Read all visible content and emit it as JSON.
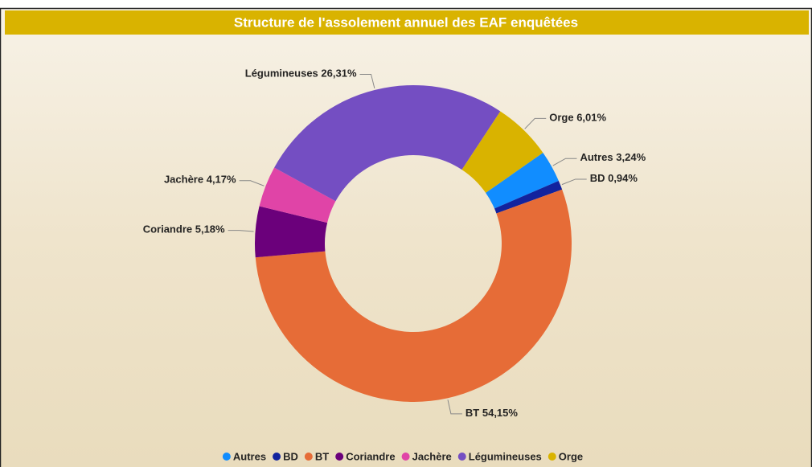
{
  "chart_data": {
    "type": "donut",
    "title": "Structure de l'assolement annuel des EAF enquêtées",
    "categories": [
      "Autres",
      "BD",
      "BT",
      "Coriandre",
      "Jachère",
      "Légumineuses",
      "Orge"
    ],
    "values": [
      3.24,
      0.94,
      54.15,
      5.18,
      4.17,
      26.31,
      6.01
    ],
    "value_labels": [
      "3,24%",
      "0,94%",
      "54,15%",
      "5,18%",
      "4,17%",
      "26,31%",
      "6,01%"
    ],
    "colors": [
      "#118DFF",
      "#12239E",
      "#E66C37",
      "#6B007B",
      "#E044A7",
      "#744EC2",
      "#D9B300"
    ]
  }
}
